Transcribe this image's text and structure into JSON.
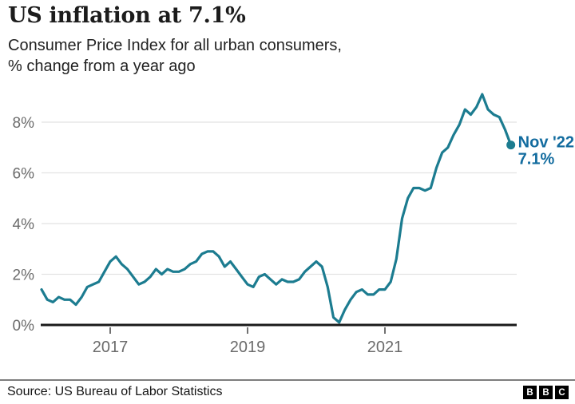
{
  "header": {
    "title": "US inflation at 7.1%",
    "subtitle_line1": "Consumer Price Index for all urban consumers,",
    "subtitle_line2": "% change from a year ago"
  },
  "chart_data": {
    "type": "line",
    "title": "US inflation at 7.1%",
    "subtitle": "Consumer Price Index for all urban consumers, % change from a year ago",
    "x_unit": "month",
    "x_start": "2016-01",
    "x_end": "2022-11",
    "x_tick_labels": [
      "2017",
      "2019",
      "2021"
    ],
    "y_tick_labels": [
      "0%",
      "2%",
      "4%",
      "6%",
      "8%"
    ],
    "ylim": [
      0,
      9.3
    ],
    "grid": "horizontal",
    "values": [
      1.4,
      1.0,
      0.9,
      1.1,
      1.0,
      1.0,
      0.8,
      1.1,
      1.5,
      1.6,
      1.7,
      2.1,
      2.5,
      2.7,
      2.4,
      2.2,
      1.9,
      1.6,
      1.7,
      1.9,
      2.2,
      2.0,
      2.2,
      2.1,
      2.1,
      2.2,
      2.4,
      2.5,
      2.8,
      2.9,
      2.9,
      2.7,
      2.3,
      2.5,
      2.2,
      1.9,
      1.6,
      1.5,
      1.9,
      2.0,
      1.8,
      1.6,
      1.8,
      1.7,
      1.7,
      1.8,
      2.1,
      2.3,
      2.5,
      2.3,
      1.5,
      0.3,
      0.1,
      0.6,
      1.0,
      1.3,
      1.4,
      1.2,
      1.2,
      1.4,
      1.4,
      1.7,
      2.6,
      4.2,
      5.0,
      5.4,
      5.4,
      5.3,
      5.4,
      6.2,
      6.8,
      7.0,
      7.5,
      7.9,
      8.5,
      8.3,
      8.6,
      9.1,
      8.5,
      8.3,
      8.2,
      7.7,
      7.1
    ],
    "annotation": {
      "line1": "Nov '22",
      "line2": "7.1%"
    },
    "line_color": "#1c7c90",
    "annotation_color": "#136c9f",
    "gridline_color": "#e2e2e2",
    "axis_color": "#1a1a1a",
    "tick_color": "#4d4d4d",
    "axis_label_color": "#6b6b6b",
    "legend_position": "none"
  },
  "footer": {
    "source": "Source: US Bureau of Labor Statistics",
    "logo_letters": [
      "B",
      "B",
      "C"
    ]
  }
}
